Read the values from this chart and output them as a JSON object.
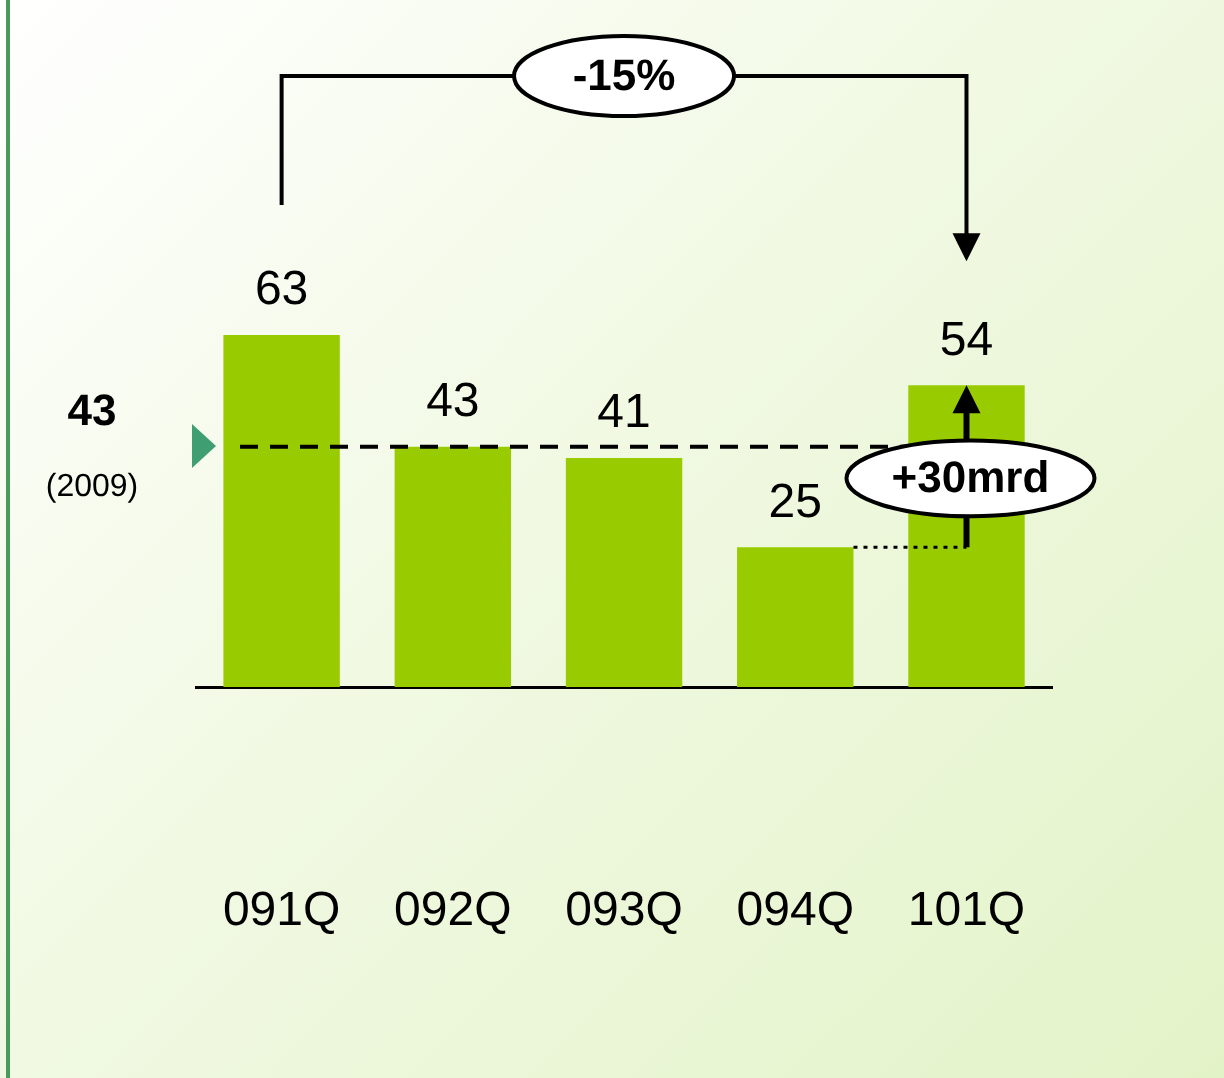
{
  "chart_data": {
    "type": "bar",
    "categories": [
      "091Q",
      "092Q",
      "093Q",
      "094Q",
      "101Q"
    ],
    "values": [
      63,
      43,
      41,
      25,
      54
    ],
    "color": "#99cc00",
    "data_labels": true,
    "legend": false,
    "grid": false,
    "ref_lines": [
      {
        "axis": "y",
        "value": 43,
        "label": "43",
        "line_style": "dashed",
        "color": "#000000"
      }
    ],
    "annotations": [
      "-15%",
      "+30mrd",
      "(2009)"
    ]
  }
}
